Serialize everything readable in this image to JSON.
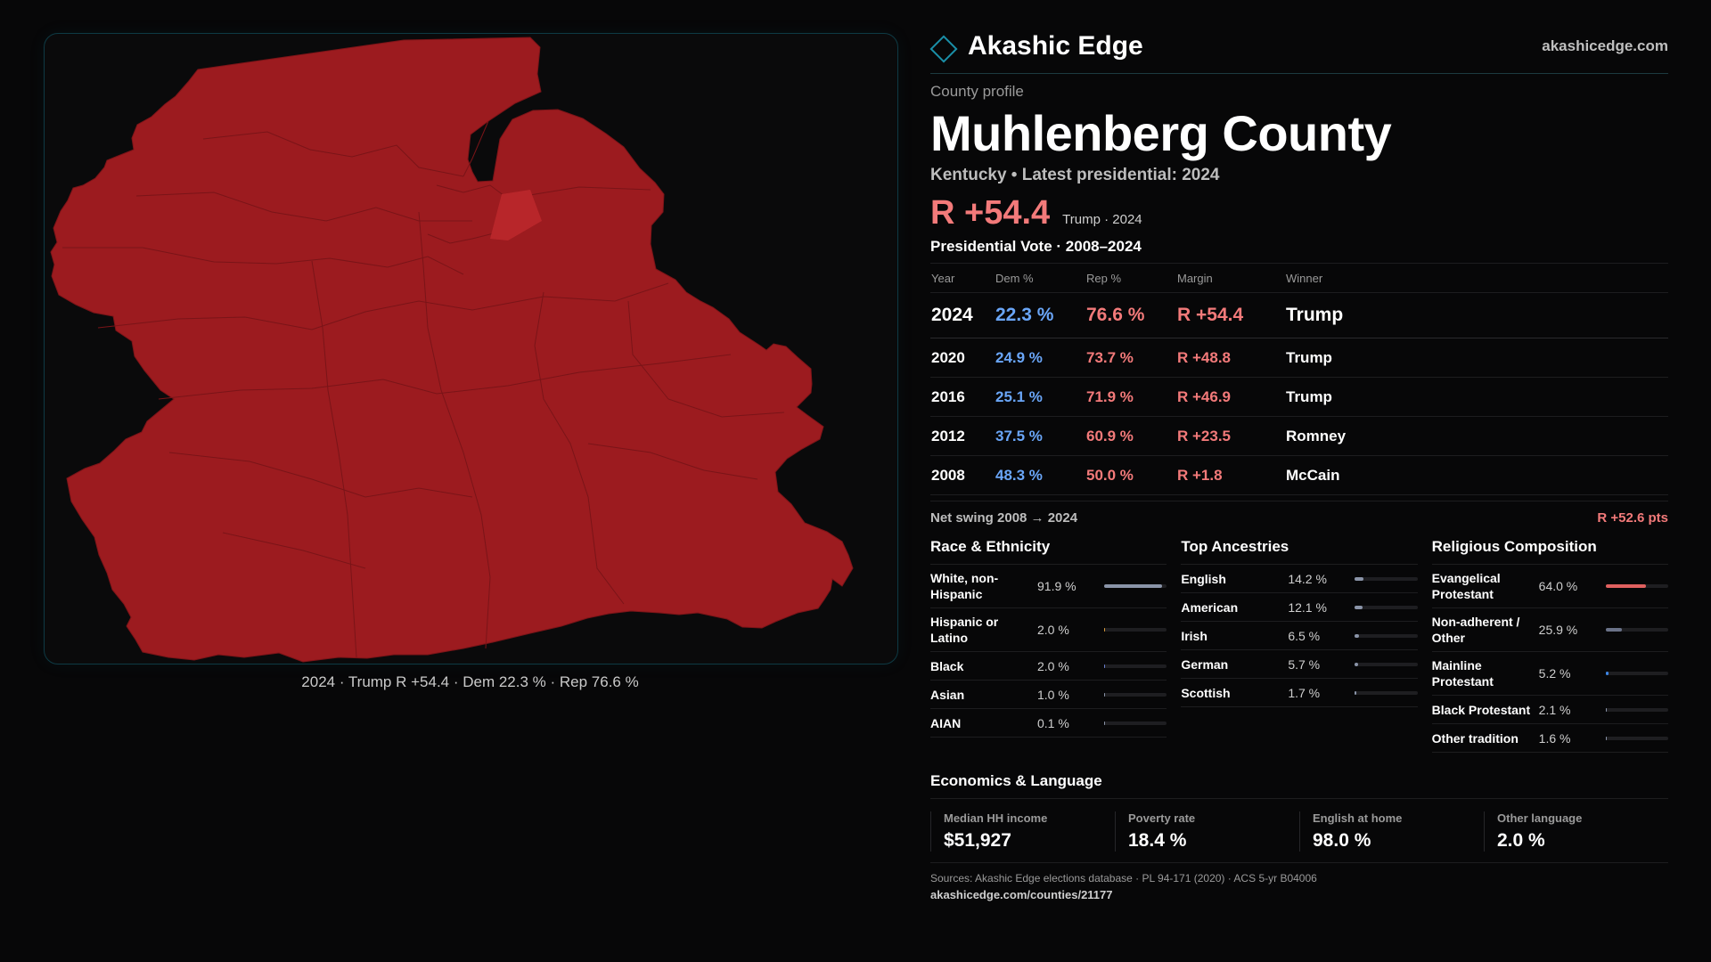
{
  "map": {
    "caption": "2024 · Trump R +54.4 · Dem 22.3 % · Rep 76.6 %",
    "fill_color": "#9c1b1f",
    "highlight_color": "#b8262a",
    "border_color": "#0e3a44"
  },
  "header": {
    "brand": "Akashic Edge",
    "domain": "akashicedge.com"
  },
  "profile": {
    "eyebrow": "County profile",
    "title": "Muhlenberg County",
    "subtitle": "Kentucky • Latest presidential: 2024",
    "margin": "R +54.4",
    "margin_note": "Trump · 2024"
  },
  "votes": {
    "section_title": "Presidential Vote · 2008–2024",
    "headers": [
      "Year",
      "Dem %",
      "Rep %",
      "Margin",
      "Winner"
    ],
    "rows": [
      {
        "year": "2024",
        "dem": "22.3 %",
        "rep": "76.6 %",
        "margin": "R +54.4",
        "winner": "Trump"
      },
      {
        "year": "2020",
        "dem": "24.9 %",
        "rep": "73.7 %",
        "margin": "R +48.8",
        "winner": "Trump"
      },
      {
        "year": "2016",
        "dem": "25.1 %",
        "rep": "71.9 %",
        "margin": "R +46.9",
        "winner": "Trump"
      },
      {
        "year": "2012",
        "dem": "37.5 %",
        "rep": "60.9 %",
        "margin": "R +23.5",
        "winner": "Romney"
      },
      {
        "year": "2008",
        "dem": "48.3 %",
        "rep": "50.0 %",
        "margin": "R +1.8",
        "winner": "McCain"
      }
    ],
    "swing_label": "Net swing 2008 → 2024",
    "swing_value": "R +52.6 pts"
  },
  "race": {
    "title": "Race & Ethnicity",
    "color": "#8a94a8",
    "items": [
      {
        "label": "White, non-Hispanic",
        "value": "91.9 %",
        "pct": 91.9
      },
      {
        "label": "Hispanic or Latino",
        "value": "2.0 %",
        "pct": 2.0,
        "color": "#d99a3a"
      },
      {
        "label": "Black",
        "value": "2.0 %",
        "pct": 2.0,
        "color": "#6a7fd0"
      },
      {
        "label": "Asian",
        "value": "1.0 %",
        "pct": 1.0
      },
      {
        "label": "AIAN",
        "value": "0.1 %",
        "pct": 0.1
      }
    ]
  },
  "ancestry": {
    "title": "Top Ancestries",
    "color": "#8a94a8",
    "items": [
      {
        "label": "English",
        "value": "14.2 %",
        "pct": 14.2
      },
      {
        "label": "American",
        "value": "12.1 %",
        "pct": 12.1
      },
      {
        "label": "Irish",
        "value": "6.5 %",
        "pct": 6.5
      },
      {
        "label": "German",
        "value": "5.7 %",
        "pct": 5.7
      },
      {
        "label": "Scottish",
        "value": "1.7 %",
        "pct": 1.7
      }
    ]
  },
  "religion": {
    "title": "Religious Composition",
    "color": "#8a94a8",
    "items": [
      {
        "label": "Evangelical Protestant",
        "value": "64.0 %",
        "pct": 64.0,
        "color": "#e0605f"
      },
      {
        "label": "Non-adherent / Other",
        "value": "25.9 %",
        "pct": 25.9,
        "color": "#6a7288"
      },
      {
        "label": "Mainline Protestant",
        "value": "5.2 %",
        "pct": 5.2,
        "color": "#3d86e6"
      },
      {
        "label": "Black Protestant",
        "value": "2.1 %",
        "pct": 2.1
      },
      {
        "label": "Other tradition",
        "value": "1.6 %",
        "pct": 1.6
      }
    ]
  },
  "economics": {
    "title": "Economics & Language",
    "stats": [
      {
        "label": "Median HH income",
        "value": "$51,927"
      },
      {
        "label": "Poverty rate",
        "value": "18.4 %"
      },
      {
        "label": "English at home",
        "value": "98.0 %"
      },
      {
        "label": "Other language",
        "value": "2.0 %"
      }
    ]
  },
  "footer": {
    "sources": "Sources: Akashic Edge elections database · PL 94-171 (2020) · ACS 5-yr B04006",
    "url": "akashicedge.com/counties/21177"
  }
}
